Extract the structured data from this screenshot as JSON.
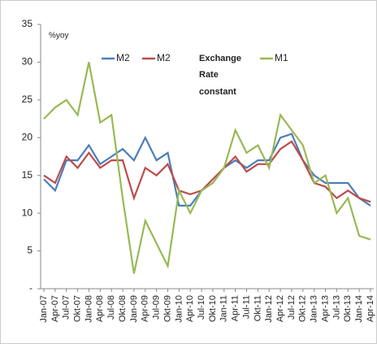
{
  "chart_data": {
    "type": "line",
    "annotation": "%yoy",
    "legend_note": [
      "Exchange",
      "Rate",
      "constant"
    ],
    "categories": [
      "Jan-07",
      "Apr-07",
      "Jul-07",
      "Okt-07",
      "Jan-08",
      "Apr-08",
      "Jul-08",
      "Okt-08",
      "Jan-09",
      "Apr-09",
      "Jul-09",
      "Okt-09",
      "Jan-10",
      "Apr-10",
      "Jul-10",
      "Okt-10",
      "Jan-11",
      "Apr-11",
      "Jul-11",
      "Okt-11",
      "Jan-12",
      "Apr-12",
      "Jul-12",
      "Okt-12",
      "Jan-13",
      "Apr-13",
      "Jul-13",
      "Okt-13",
      "Jan-14",
      "Apr-14"
    ],
    "series": [
      {
        "name": "M2",
        "color": "#4a7ebb",
        "values": [
          14.5,
          13,
          17,
          17,
          19,
          16.5,
          17.5,
          18.5,
          17,
          20,
          17,
          18,
          11,
          11,
          13,
          14,
          16,
          17,
          16,
          17,
          17,
          20,
          20.5,
          17,
          15,
          14,
          14,
          14,
          12,
          11
        ]
      },
      {
        "name": "M2",
        "color": "#be4b48",
        "values": [
          15,
          14,
          17.5,
          16,
          18,
          16,
          17,
          17,
          12,
          16,
          15,
          16.5,
          13,
          12.5,
          13,
          14.5,
          16,
          17.5,
          15.5,
          16.5,
          16.5,
          18.5,
          19.5,
          17,
          14,
          13.5,
          12,
          13,
          12,
          11.5
        ]
      },
      {
        "name": "M1",
        "color": "#98b954",
        "values": [
          22.5,
          24,
          25,
          23,
          30,
          22,
          23,
          12,
          2,
          9,
          6,
          3,
          13,
          10,
          13,
          14,
          16,
          21,
          18,
          19,
          16,
          23,
          21,
          19,
          14,
          15,
          10,
          12,
          7,
          6.5
        ]
      }
    ],
    "ylim": [
      0,
      35
    ],
    "yticks": [
      {
        "value": 0,
        "label": "-"
      },
      5,
      10,
      15,
      20,
      25,
      30,
      35
    ]
  }
}
